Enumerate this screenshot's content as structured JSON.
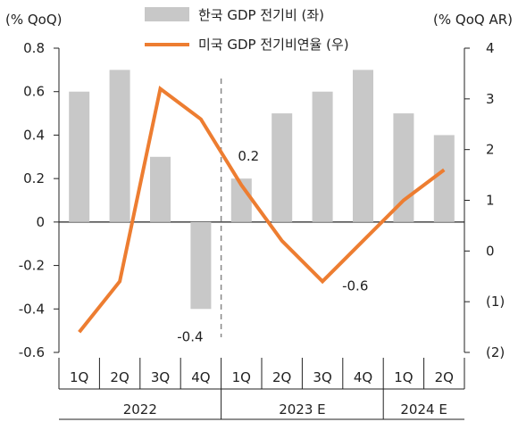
{
  "chart_data": {
    "type": "bar+line",
    "categories": [
      "1Q",
      "2Q",
      "3Q",
      "4Q",
      "1Q",
      "2Q",
      "3Q",
      "4Q",
      "1Q",
      "2Q"
    ],
    "year_groups": [
      {
        "label": "2022",
        "span": [
          0,
          3
        ]
      },
      {
        "label": "2023 E",
        "span": [
          4,
          7
        ]
      },
      {
        "label": "2024 E",
        "span": [
          8,
          9
        ]
      }
    ],
    "left_axis": {
      "unit_label": "(% QoQ)",
      "ylim": [
        -0.6,
        0.8
      ],
      "ticks": [
        0.8,
        0.6,
        0.4,
        0.2,
        0,
        -0.2,
        -0.4,
        -0.6
      ],
      "tick_labels": [
        "0.8",
        "0.6",
        "0.4",
        "0.2",
        "0",
        "-0.2",
        "-0.4",
        "-0.6"
      ]
    },
    "right_axis": {
      "unit_label": "(% QoQ AR)",
      "ylim": [
        -2,
        4
      ],
      "ticks": [
        4,
        3,
        2,
        1,
        0,
        -1,
        -2
      ],
      "tick_labels": [
        "4",
        "3",
        "2",
        "1",
        "0",
        "(1)",
        "(2)"
      ],
      "negative_color": "#e0201b"
    },
    "series": [
      {
        "name": "한국 GDP 전기비 (좌)",
        "kind": "bar",
        "axis": "left",
        "color": "#c8c8c8",
        "values": [
          0.6,
          0.7,
          0.3,
          -0.4,
          0.2,
          0.5,
          0.6,
          0.7,
          0.5,
          0.4
        ]
      },
      {
        "name": "미국 GDP 전기비연율 (우)",
        "kind": "line",
        "axis": "right",
        "color": "#ed7d31",
        "values": [
          -1.6,
          -0.6,
          3.2,
          2.6,
          1.3,
          0.2,
          -0.6,
          0.2,
          1.0,
          1.6
        ]
      }
    ],
    "annotations": [
      {
        "text": "0.2",
        "index": 4,
        "series": 0,
        "pos": "above"
      },
      {
        "text": "-0.4",
        "index": 3,
        "series": 0,
        "pos": "below"
      },
      {
        "text": "-0.6",
        "index": 6,
        "series": 1,
        "pos": "right"
      }
    ],
    "divider_after_index": 3,
    "legend_position": "top-center",
    "grid": false
  }
}
